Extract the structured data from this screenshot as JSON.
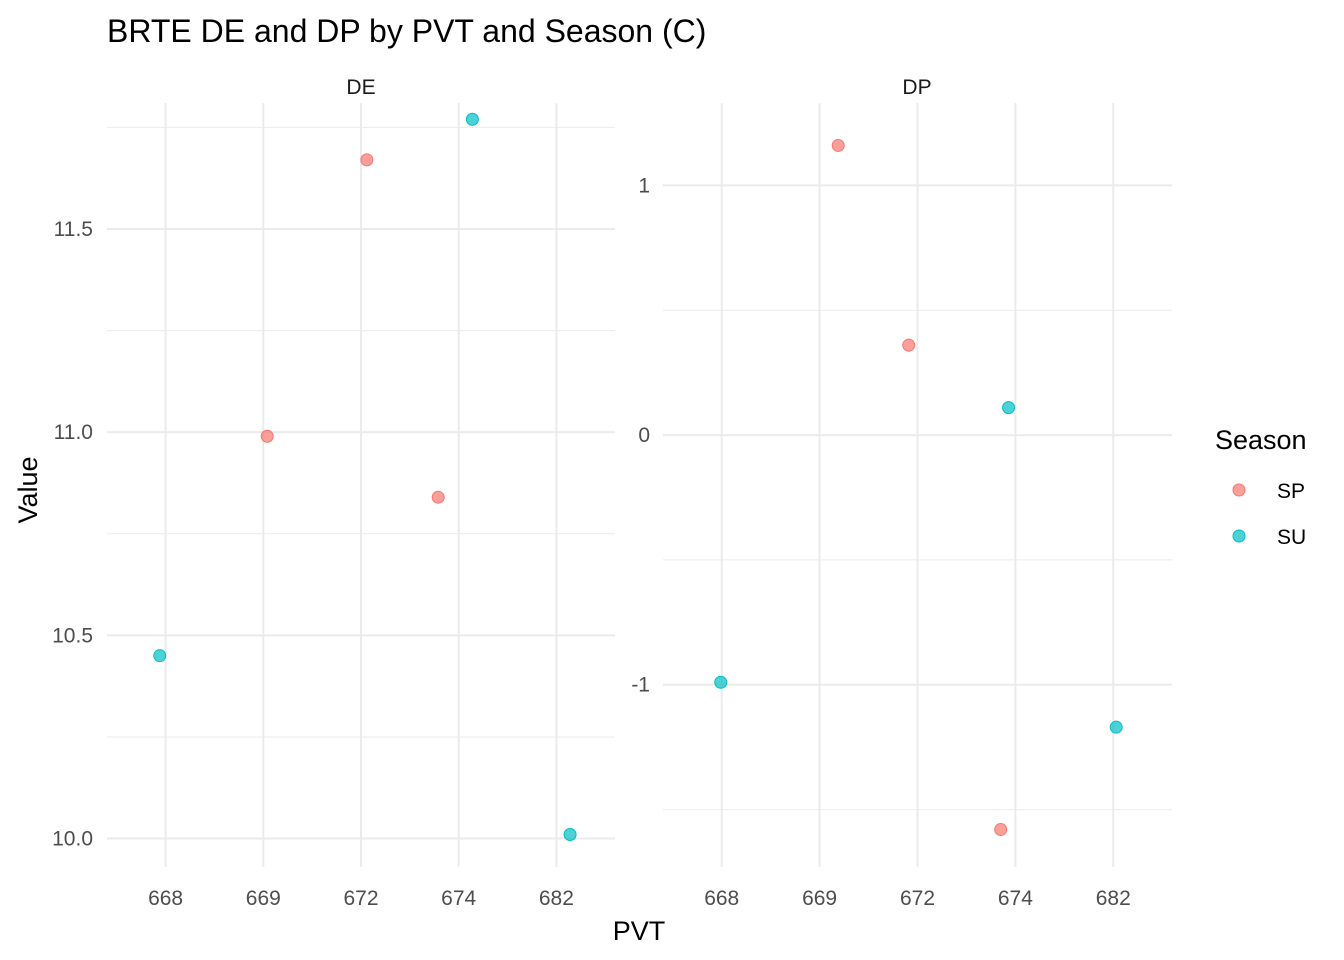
{
  "chart_data": {
    "type": "scatter",
    "title": "BRTE DE and DP by PVT and Season (C)",
    "xlabel": "PVT",
    "ylabel": "Value",
    "categories": [
      "668",
      "669",
      "672",
      "674",
      "682"
    ],
    "legend": {
      "title": "Season",
      "position": "right",
      "entries": [
        {
          "name": "SP",
          "color": "#F8766D"
        },
        {
          "name": "SU",
          "color": "#00BFC4"
        }
      ]
    },
    "grid": true,
    "facets": [
      {
        "label": "DE",
        "ylim": [
          9.93,
          11.81
        ],
        "yticks": [
          "10.0",
          "10.5",
          "11.0",
          "11.5"
        ],
        "ytick_values": [
          10.0,
          10.5,
          11.0,
          11.5
        ],
        "points": [
          {
            "category": "668",
            "season": "SU",
            "value": 10.45,
            "jitter": -0.06
          },
          {
            "category": "669",
            "season": "SP",
            "value": 10.99,
            "jitter": 0.04
          },
          {
            "category": "672",
            "season": "SP",
            "value": 11.67,
            "jitter": 0.06
          },
          {
            "category": "674",
            "season": "SP",
            "value": 10.84,
            "jitter": -0.21
          },
          {
            "category": "674",
            "season": "SU",
            "value": 11.77,
            "jitter": 0.14
          },
          {
            "category": "682",
            "season": "SU",
            "value": 10.01,
            "jitter": 0.14
          }
        ]
      },
      {
        "label": "DP",
        "ylim": [
          -1.73,
          1.33
        ],
        "yticks": [
          "-1",
          "0",
          "1"
        ],
        "ytick_values": [
          -1,
          0,
          1
        ],
        "points": [
          {
            "category": "668",
            "season": "SU",
            "value": -0.99,
            "jitter": -0.01
          },
          {
            "category": "669",
            "season": "SP",
            "value": 1.16,
            "jitter": 0.19
          },
          {
            "category": "672",
            "season": "SP",
            "value": 0.36,
            "jitter": -0.09
          },
          {
            "category": "674",
            "season": "SP",
            "value": -1.58,
            "jitter": -0.15
          },
          {
            "category": "674",
            "season": "SU",
            "value": 0.11,
            "jitter": -0.07
          },
          {
            "category": "682",
            "season": "SU",
            "value": -1.17,
            "jitter": 0.03
          }
        ]
      }
    ]
  }
}
